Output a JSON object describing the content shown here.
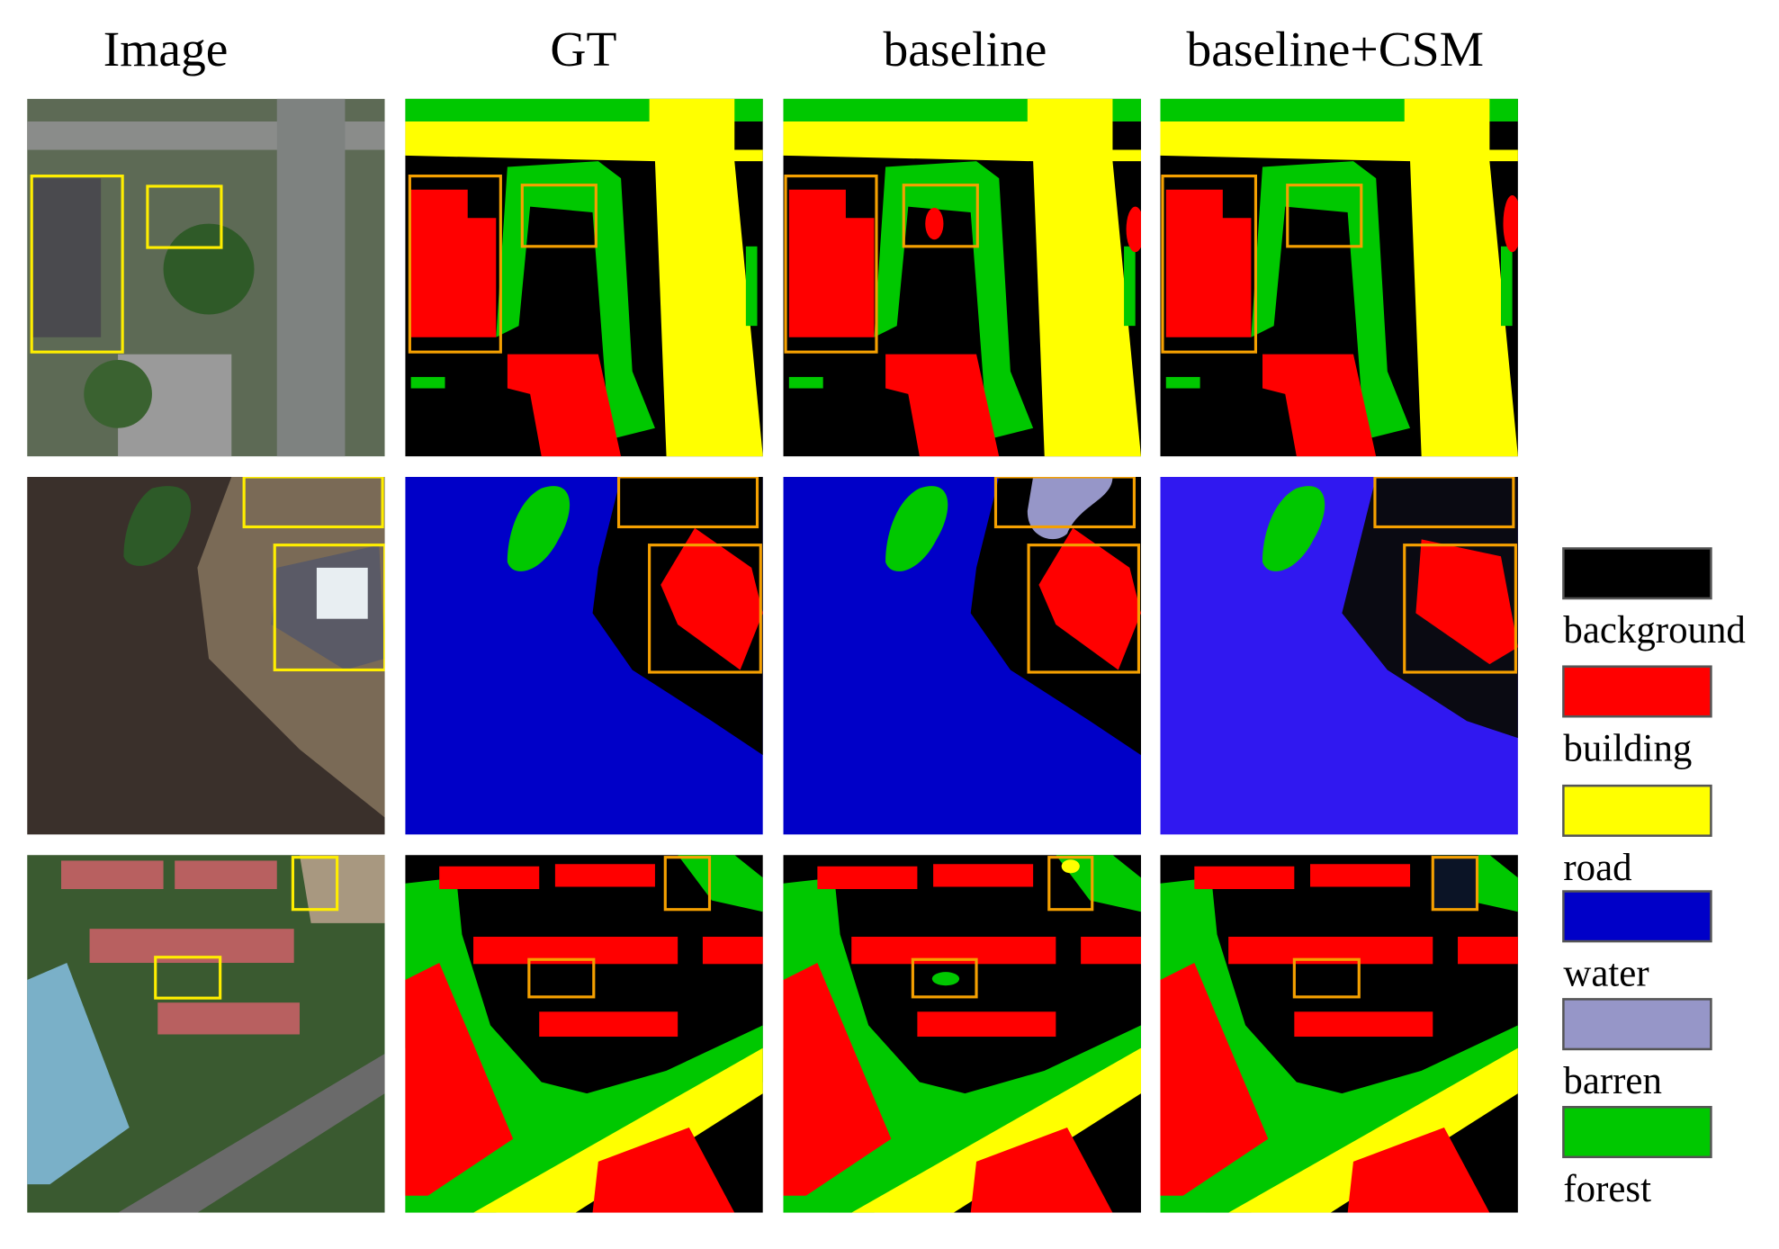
{
  "columns": [
    "Image",
    "GT",
    "baseline",
    "baseline+CSM"
  ],
  "legend": [
    {
      "label": "background",
      "color": "#000000"
    },
    {
      "label": "building",
      "color": "#ff0000"
    },
    {
      "label": "road",
      "color": "#ffff00"
    },
    {
      "label": "water",
      "color": "#0000c8"
    },
    {
      "label": "barren",
      "color": "#9696c8"
    },
    {
      "label": "forest",
      "color": "#00c800"
    }
  ]
}
